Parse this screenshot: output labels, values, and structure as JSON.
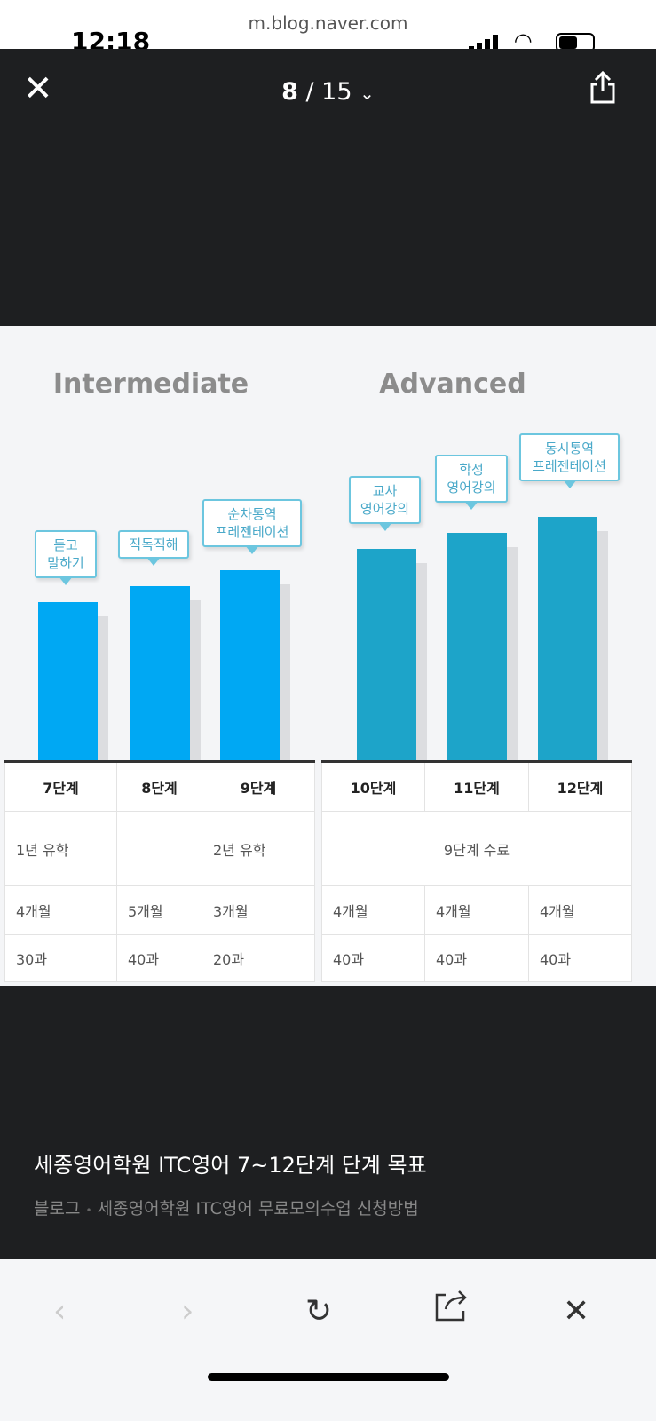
{
  "status": {
    "time": "12:18",
    "url": "m.blog.naver.com"
  },
  "viewer": {
    "current": "8",
    "total": "/ 15"
  },
  "image": {
    "sections": [
      "Intermediate",
      "Advanced"
    ],
    "bar_color_intermediate": "#00a8f3",
    "bar_color_advanced": "#1da4c9",
    "callouts": [
      "듣고\n말하기",
      "직독직해",
      "순차통역\n프레젠테이션",
      "교사\n영어강의",
      "학성\n영어강의",
      "동시통역\n프레젠테이션"
    ],
    "left_table": {
      "header": [
        "7단계",
        "8단계",
        "9단계"
      ],
      "row1": [
        "1년 유학",
        "",
        "2년 유학"
      ],
      "row2": [
        "4개월",
        "5개월",
        "3개월"
      ],
      "row3": [
        "30과",
        "40과",
        "20과"
      ]
    },
    "right_table": {
      "header": [
        "10단계",
        "11단계",
        "12단계"
      ],
      "row1": "9단계 수료",
      "row2": [
        "4개월",
        "4개월",
        "4개월"
      ],
      "row3": [
        "40과",
        "40과",
        "40과"
      ]
    }
  },
  "caption": {
    "title": "세종영어학원 ITC영어 7~12단계 단계 목표",
    "source": "블로그",
    "separator": "•",
    "post": "세종영어학원 ITC영어 무료모의수업 신청방법"
  }
}
